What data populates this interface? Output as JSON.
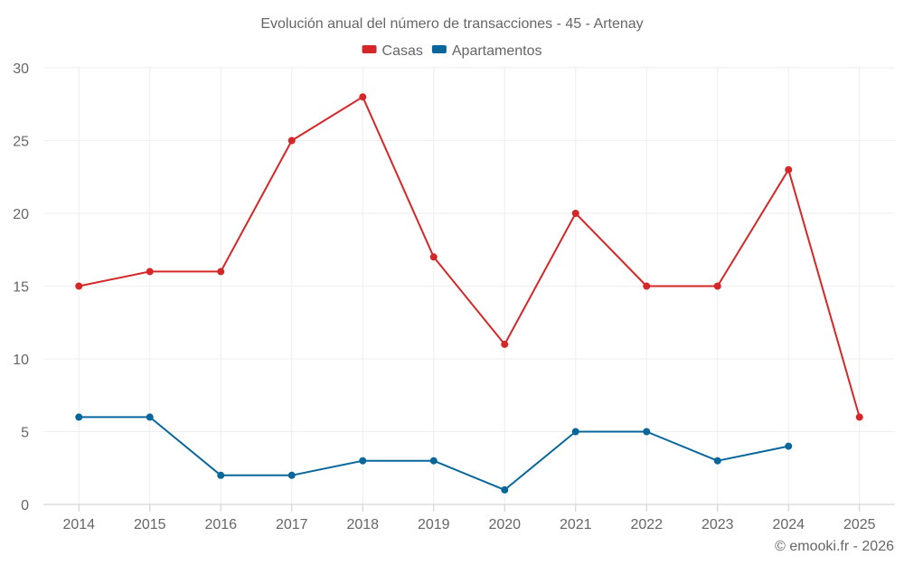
{
  "chart_data": {
    "type": "line",
    "title": "Evolución anual del número de transacciones - 45 - Artenay",
    "categories": [
      "2014",
      "2015",
      "2016",
      "2017",
      "2018",
      "2019",
      "2020",
      "2021",
      "2022",
      "2023",
      "2024",
      "2025"
    ],
    "ylim": [
      0,
      30
    ],
    "yticks": [
      0,
      5,
      10,
      15,
      20,
      25,
      30
    ],
    "grid": true,
    "legend_position": "top-center",
    "series": [
      {
        "name": "Casas",
        "color": "#d62728",
        "values": [
          15,
          16,
          16,
          25,
          28,
          17,
          11,
          20,
          15,
          15,
          23,
          6
        ]
      },
      {
        "name": "Apartamentos",
        "color": "#08679a",
        "values": [
          6,
          6,
          2,
          2,
          3,
          3,
          1,
          5,
          5,
          3,
          4,
          null
        ]
      }
    ],
    "credit": "© emooki.fr - 2026"
  }
}
